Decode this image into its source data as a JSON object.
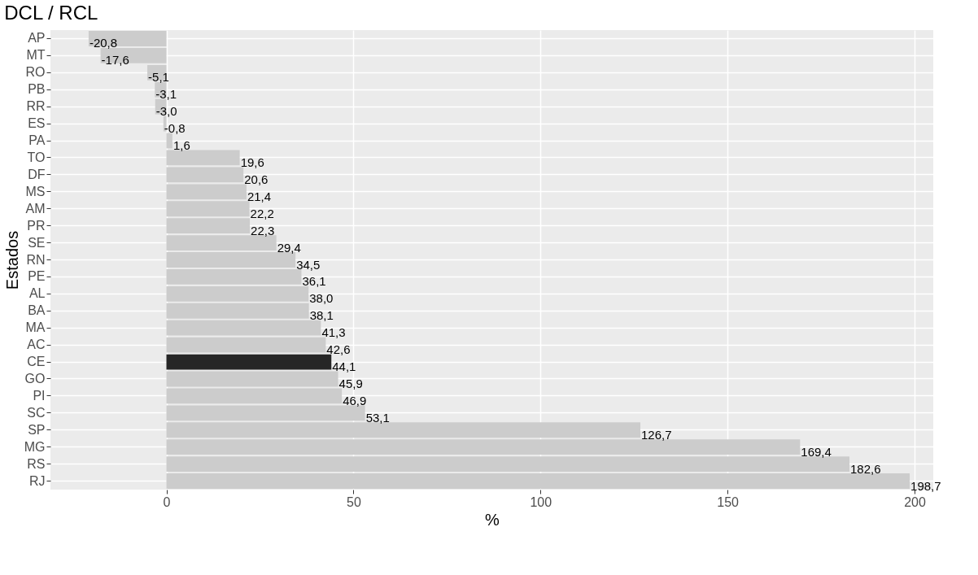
{
  "chart_data": {
    "type": "bar",
    "orientation": "horizontal",
    "title": "DCL / RCL",
    "xlabel": "%",
    "ylabel": "Estados",
    "categories": [
      "AP",
      "MT",
      "RO",
      "PB",
      "RR",
      "ES",
      "PA",
      "TO",
      "DF",
      "MS",
      "AM",
      "PR",
      "SE",
      "RN",
      "PE",
      "AL",
      "BA",
      "MA",
      "AC",
      "CE",
      "GO",
      "PI",
      "SC",
      "SP",
      "MG",
      "RS",
      "RJ"
    ],
    "values": [
      -20.8,
      -17.6,
      -5.1,
      -3.1,
      -3.0,
      -0.8,
      1.6,
      19.6,
      20.6,
      21.4,
      22.2,
      22.3,
      29.4,
      34.5,
      36.1,
      38.0,
      38.1,
      41.3,
      42.6,
      44.1,
      45.9,
      46.9,
      53.1,
      126.7,
      169.4,
      182.6,
      198.7
    ],
    "value_labels": [
      "-20,8",
      "-17,6",
      "-5,1",
      "-3,1",
      "-3,0",
      "-0,8",
      "1,6",
      "19,6",
      "20,6",
      "21,4",
      "22,2",
      "22,3",
      "29,4",
      "34,5",
      "36,1",
      "38,0",
      "38,1",
      "41,3",
      "42,6",
      "44,1",
      "45,9",
      "46,9",
      "53,1",
      "126,7",
      "169,4",
      "182,6",
      "198,7"
    ],
    "colors": [
      "#cccccc",
      "#cccccc",
      "#cccccc",
      "#cccccc",
      "#cccccc",
      "#cccccc",
      "#cccccc",
      "#cccccc",
      "#cccccc",
      "#cccccc",
      "#cccccc",
      "#cccccc",
      "#cccccc",
      "#cccccc",
      "#cccccc",
      "#cccccc",
      "#cccccc",
      "#cccccc",
      "#cccccc",
      "#262626",
      "#cccccc",
      "#cccccc",
      "#cccccc",
      "#cccccc",
      "#cccccc",
      "#cccccc",
      "#cccccc"
    ],
    "xlim": [
      -31,
      205
    ],
    "xticks": [
      0,
      50,
      100,
      150,
      200
    ],
    "grid": true
  }
}
